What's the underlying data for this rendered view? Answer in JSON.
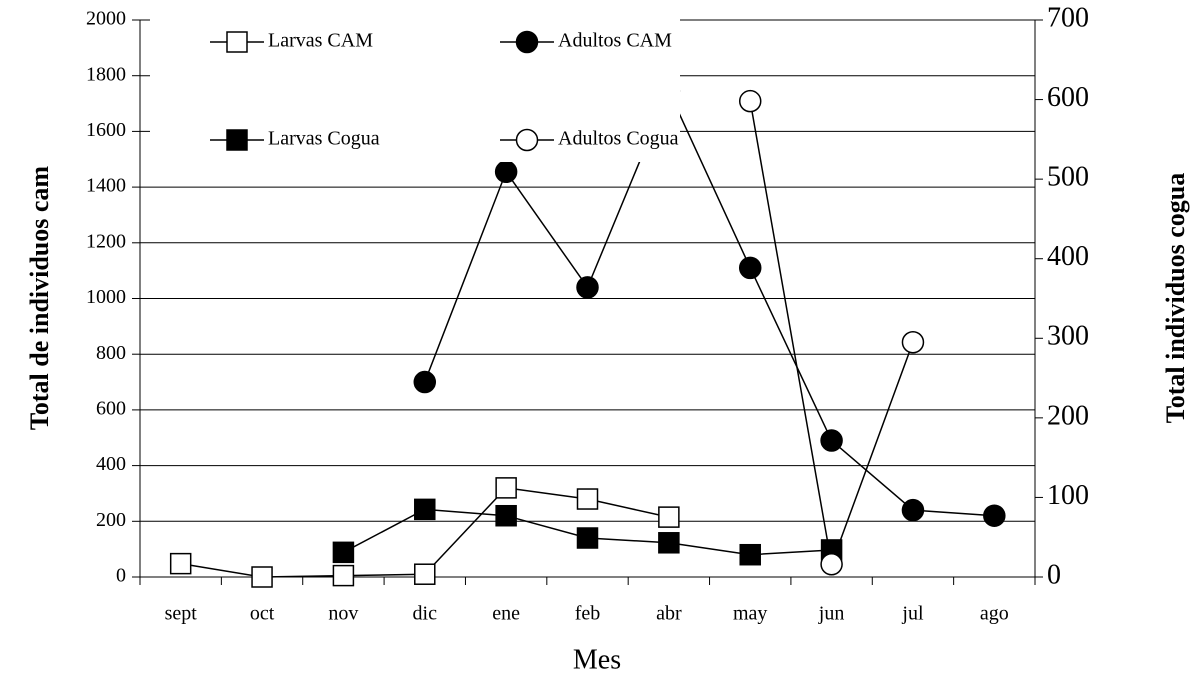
{
  "chart_data": {
    "type": "line",
    "xlabel": "Mes",
    "ylabel": "Total de individuos cam",
    "y2label": "Total individuos cogua",
    "categories": [
      "sept",
      "oct",
      "nov",
      "dic",
      "ene",
      "feb",
      "abr",
      "may",
      "jun",
      "jul",
      "ago"
    ],
    "ylim": [
      0,
      2000
    ],
    "yticks": [
      0,
      200,
      400,
      600,
      800,
      1000,
      1200,
      1400,
      1600,
      1800,
      2000
    ],
    "y2lim": [
      0,
      700
    ],
    "y2ticks": [
      0,
      100,
      200,
      300,
      400,
      500,
      600,
      700
    ],
    "grid": true,
    "series": [
      {
        "name": "Larvas CAM",
        "color": "#000000",
        "marker": "square-open",
        "axis": "y",
        "values": [
          48,
          0,
          5,
          10,
          320,
          280,
          215,
          null,
          null,
          null,
          null
        ]
      },
      {
        "name": "Adultos CAM",
        "color": "#000000",
        "marker": "circle-filled",
        "axis": "y",
        "values": [
          null,
          null,
          null,
          700,
          1455,
          1040,
          1745,
          1110,
          490,
          240,
          220
        ]
      },
      {
        "name": "Larvas Cogua",
        "color": "#000000",
        "marker": "square-filled",
        "axis": "y2",
        "values": [
          null,
          null,
          31,
          85,
          77,
          49,
          43,
          28,
          34,
          null,
          null
        ]
      },
      {
        "name": "Adultos Cogua",
        "color": "#000000",
        "marker": "circle-open",
        "axis": "y2",
        "values": [
          null,
          null,
          null,
          null,
          null,
          null,
          null,
          598,
          16,
          295,
          null
        ]
      }
    ]
  }
}
